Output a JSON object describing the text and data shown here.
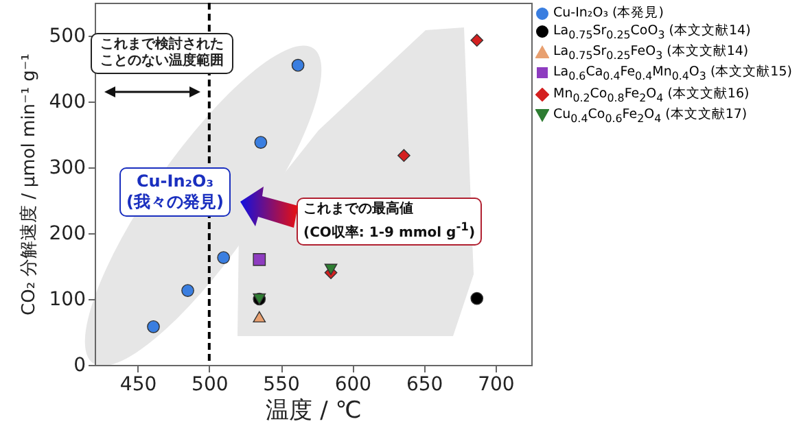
{
  "chart_data": {
    "type": "scatter",
    "xlabel": "温度 / ℃",
    "ylabel": "CO₂ 分解速度 / μmol min⁻¹ g⁻¹",
    "xlim": [
      420,
      725
    ],
    "ylim": [
      0,
      550
    ],
    "xticks": [
      450,
      500,
      550,
      600,
      650,
      700
    ],
    "yticks": [
      0,
      100,
      200,
      300,
      400,
      500
    ],
    "grid": false,
    "legend": "right",
    "series": [
      {
        "name": "Cu-In₂O₃ (本発見)",
        "color": "#3a7ee0",
        "marker": "circle",
        "x": [
          461,
          485,
          510,
          536,
          562
        ],
        "values": [
          58,
          113,
          163,
          338,
          455
        ]
      },
      {
        "name": "La$_{0.75}$Sr$_{0.25}$CoO$_{3}$ (本文文献14)",
        "color": "#000000",
        "marker": "circle",
        "x": [
          535,
          687
        ],
        "values": [
          100,
          101
        ]
      },
      {
        "name": "La$_{0.75}$Sr$_{0.25}$FeO$_{3}$ (本文文献14)",
        "color": "#e8a070",
        "marker": "triangle",
        "x": [
          535
        ],
        "values": [
          73
        ]
      },
      {
        "name": "La$_{0.6}$Ca$_{0.4}$Fe$_{0.4}$Mn$_{0.4}$O$_{3}$ (本文文献15)",
        "color": "#8e3cc0",
        "marker": "square",
        "x": [
          535
        ],
        "values": [
          160
        ]
      },
      {
        "name": "Mn$_{0.2}$Co$_{0.8}$Fe$_{2}$O$_{4}$ (本文文献16)",
        "color": "#d42020",
        "marker": "diamond",
        "x": [
          585,
          636,
          687
        ],
        "values": [
          140,
          318,
          493
        ]
      },
      {
        "name": "Cu$_{0.4}$Co$_{0.6}$Fe$_{2}$O$_{4}$ (本文文献17)",
        "color": "#2e7d32",
        "marker": "triangle-down",
        "x": [
          535,
          585
        ],
        "values": [
          100,
          145
        ]
      }
    ],
    "ref_lines": [
      {
        "axis": "x",
        "value": 500,
        "line_style": "dashed",
        "color": "#000000"
      }
    ],
    "annotations": [
      "これまで検討されたことのない温度範囲",
      "Cu-In₂O₃\n(我々の発見)",
      "これまでの最高値\n(CO収率: 1-9 mmol g$^{-1}$)"
    ]
  }
}
